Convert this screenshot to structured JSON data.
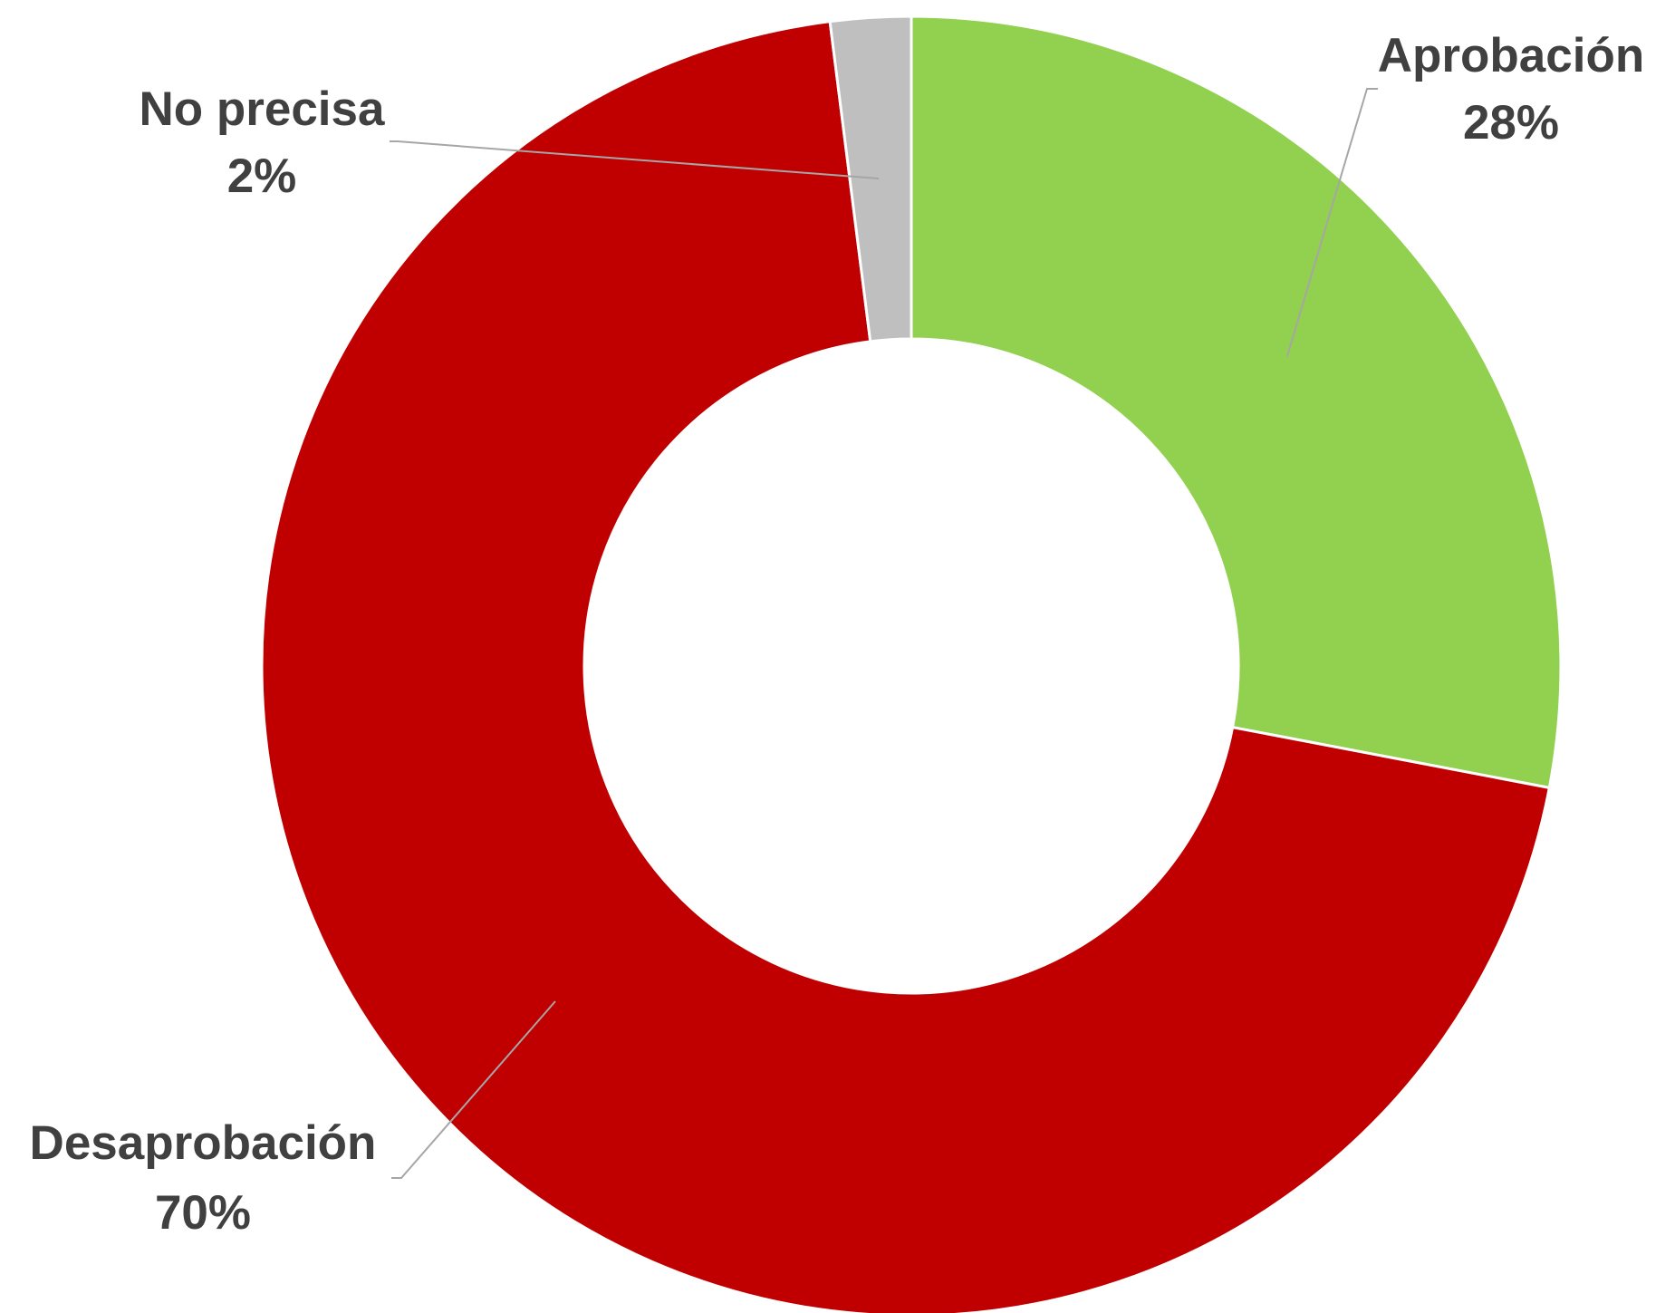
{
  "chart_data": {
    "type": "donut",
    "categories": [
      "Aprobación",
      "Desaprobación",
      "No precisa"
    ],
    "values": [
      28,
      70,
      2
    ],
    "value_labels": [
      "28%",
      "70%",
      "2%"
    ],
    "colors": [
      "#92d050",
      "#c00000",
      "#bfbfbf"
    ]
  }
}
